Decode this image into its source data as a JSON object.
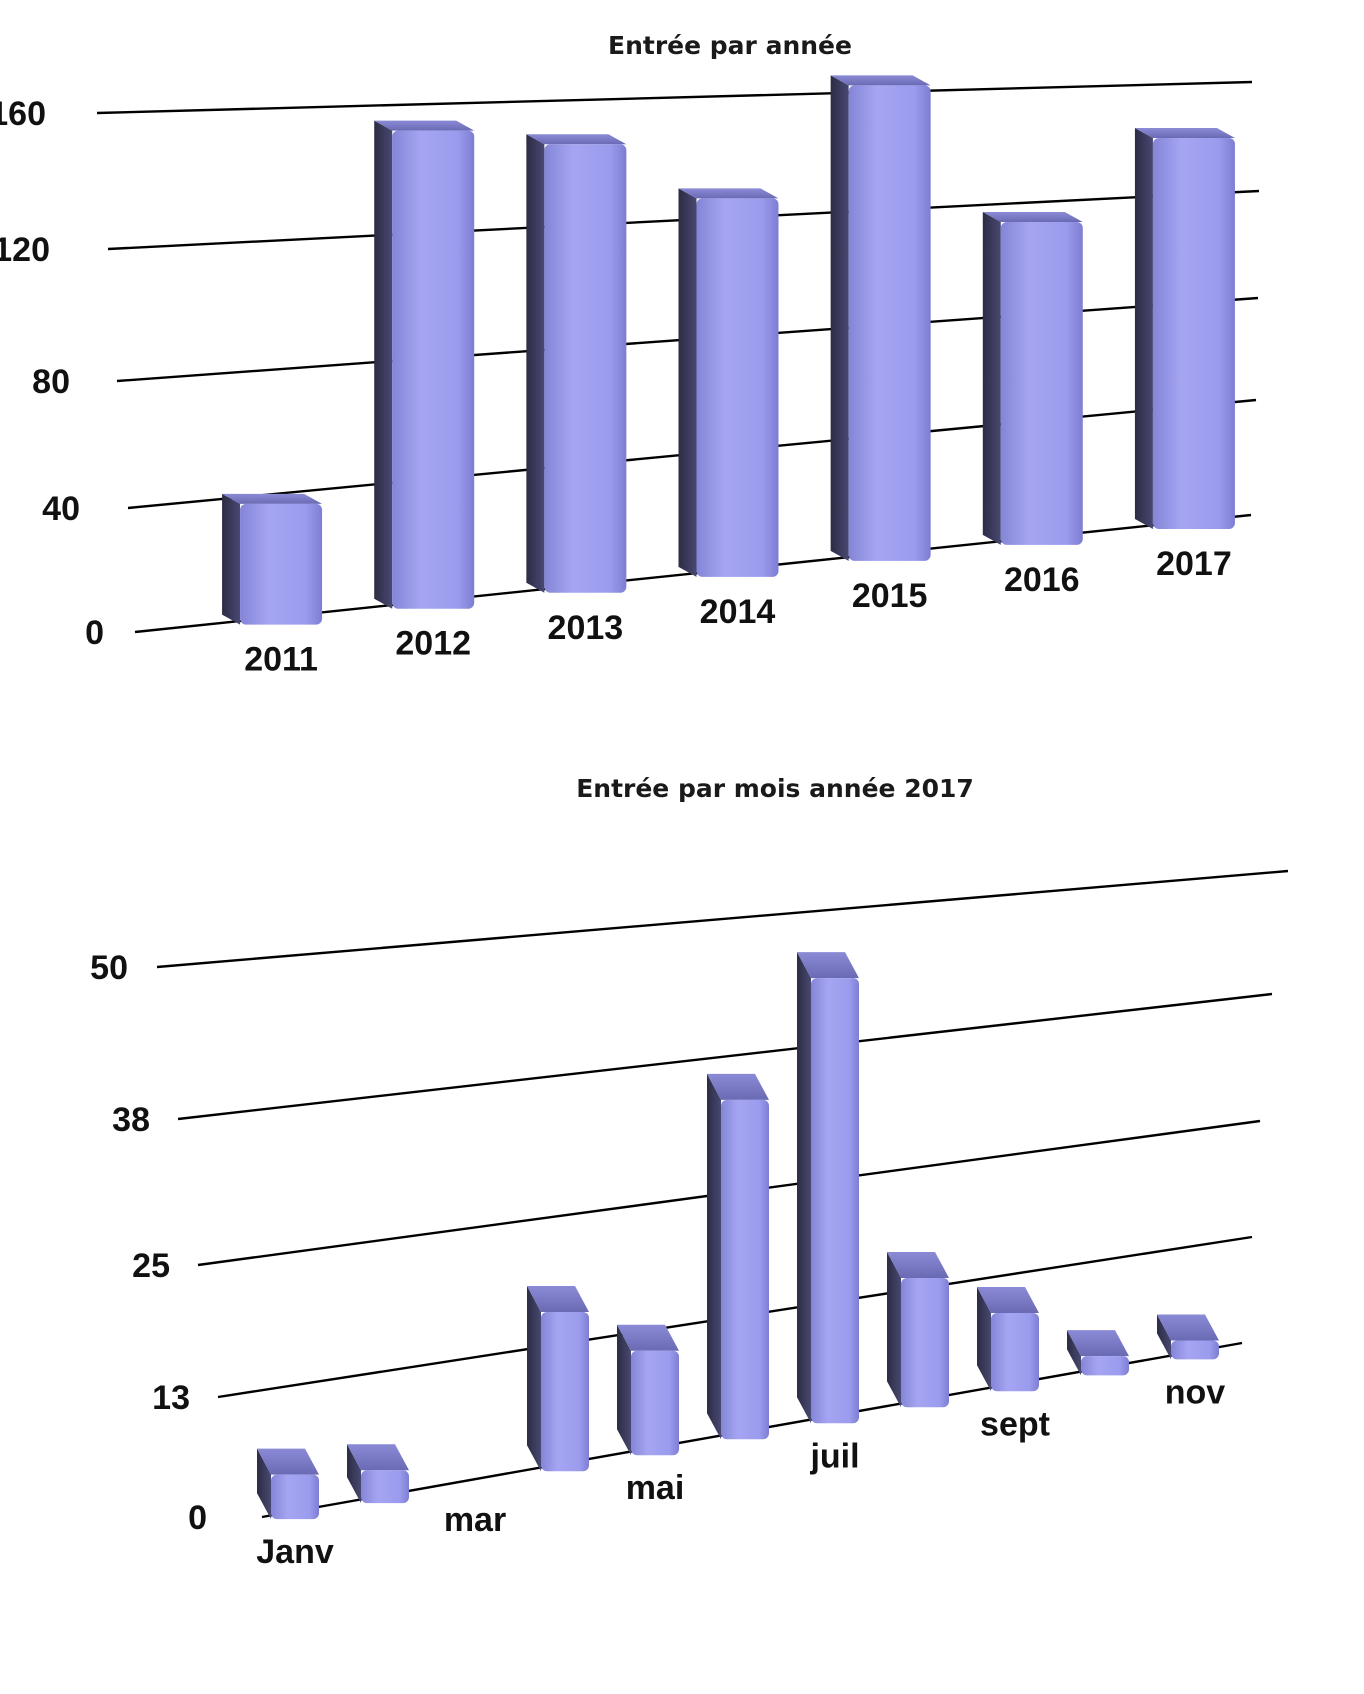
{
  "chart_data": [
    {
      "type": "bar",
      "title": "Entrée par année",
      "categories": [
        "2011",
        "2012",
        "2013",
        "2014",
        "2015",
        "2016",
        "2017"
      ],
      "values": [
        38,
        154,
        148,
        128,
        165,
        115,
        143
      ],
      "yticks": [
        0,
        40,
        80,
        120,
        160
      ],
      "ylim": [
        0,
        160
      ],
      "grid": true,
      "legend": "none",
      "bar_color": "#9999ee",
      "bar_shade": "#3c3c5e"
    },
    {
      "type": "bar",
      "title": "Entrée par mois année 2017",
      "categories": [
        "Janv",
        "",
        "mar",
        "",
        "mai",
        "",
        "juil",
        "",
        "sept",
        "",
        "nov"
      ],
      "values": [
        4,
        3,
        0,
        15,
        10,
        33,
        44,
        13,
        8,
        2,
        2
      ],
      "yticks": [
        0,
        13,
        25,
        38,
        50
      ],
      "ylim": [
        0,
        50
      ],
      "grid": true,
      "legend": "none",
      "bar_color": "#9999ee",
      "bar_shade": "#3c3c5e"
    }
  ]
}
